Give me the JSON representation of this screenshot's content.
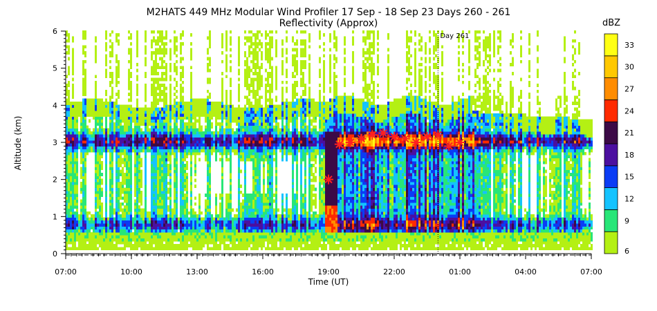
{
  "chart_data": {
    "type": "heatmap",
    "title": "M2HATS 449 MHz Modular Wind Profiler  17 Sep - 18 Sep 23 Days 260 - 261",
    "subtitle": "Reflectivity (Approx)",
    "xlabel": "Time (UT)",
    "ylabel": "Altitude (km)",
    "x_ticks": [
      "07:00",
      "10:00",
      "13:00",
      "16:00",
      "19:00",
      "22:00",
      "01:00",
      "04:00",
      "07:00"
    ],
    "y_ticks": [
      "0",
      "1",
      "2",
      "3",
      "4",
      "5",
      "6"
    ],
    "xlim_hours": [
      0,
      24
    ],
    "ylim_km": [
      0,
      6
    ],
    "day_marker": {
      "label": "Day 261",
      "hour": 17
    },
    "colorbar": {
      "label": "dBZ",
      "levels": [
        "6",
        "9",
        "12",
        "15",
        "18",
        "21",
        "24",
        "27",
        "30",
        "33"
      ],
      "colors": [
        "#b4f014",
        "#28e678",
        "#14c3ff",
        "#0a3cf5",
        "#4b0fa0",
        "#3c0a46",
        "#ff2a00",
        "#ff8c00",
        "#ffc800",
        "#ffff14"
      ]
    },
    "markers": {
      "symbol": "asterisk",
      "color": "#ff2020",
      "points": [
        {
          "hour": 12.0,
          "km": 2.0
        },
        {
          "hour": 12.5,
          "km": 2.95
        },
        {
          "hour": 13.0,
          "km": 3.0
        },
        {
          "hour": 13.5,
          "km": 3.1
        },
        {
          "hour": 14.0,
          "km": 3.2
        },
        {
          "hour": 14.5,
          "km": 3.25
        },
        {
          "hour": 15.0,
          "km": 3.15
        },
        {
          "hour": 15.5,
          "km": 3.1
        },
        {
          "hour": 16.0,
          "km": 3.0
        },
        {
          "hour": 16.5,
          "km": 3.15
        },
        {
          "hour": 17.0,
          "km": 3.2
        },
        {
          "hour": 17.5,
          "km": 2.9
        },
        {
          "hour": 18.0,
          "km": 3.0
        }
      ]
    }
  }
}
